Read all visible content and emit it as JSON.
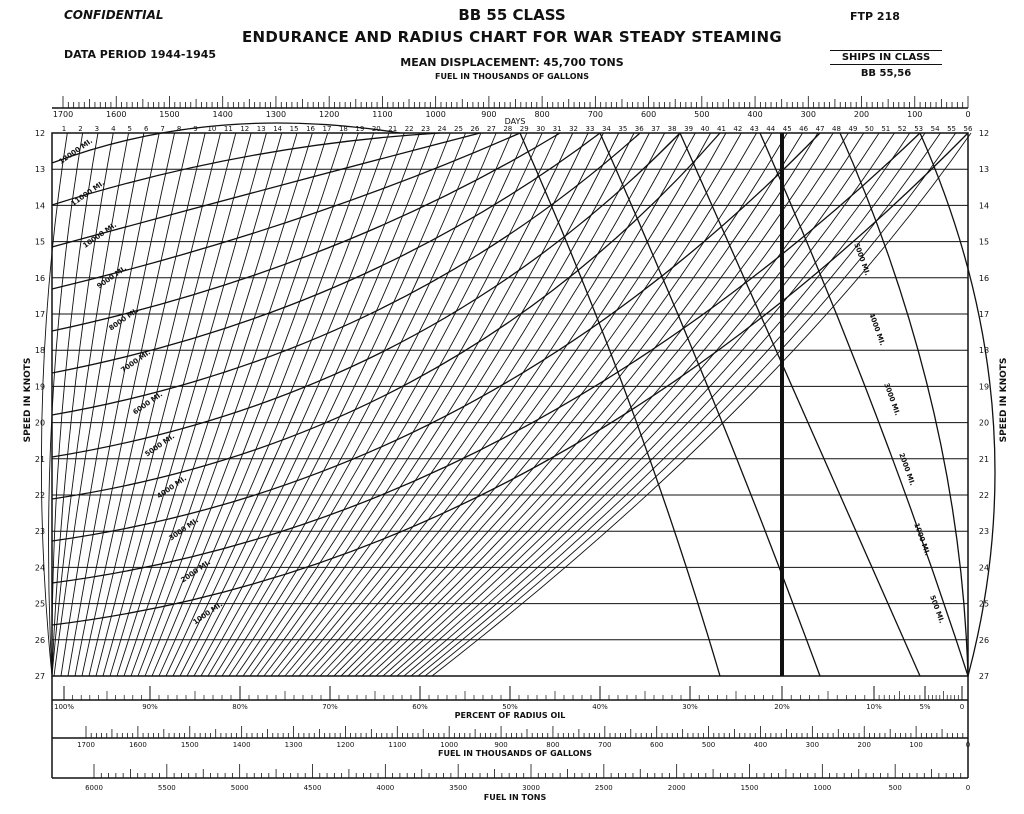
{
  "header": {
    "confidential": "CONFIDENTIAL",
    "title": "BB 55 CLASS",
    "subtitle": "ENDURANCE AND RADIUS CHART FOR WAR STEADY STEAMING",
    "ftp": "FTP 218",
    "data_period": "DATA PERIOD 1944-1945",
    "mean_displacement": "MEAN DISPLACEMENT: 45,700 TONS",
    "fuel_gallons_top": "FUEL IN THOUSANDS OF GALLONS",
    "ships_in_class_label": "SHIPS IN CLASS",
    "ships_in_class": "BB 55,56"
  },
  "chart_data": {
    "type": "line",
    "description_note": "",
    "y_axis": {
      "label": "SPEED IN KNOTS",
      "min": 12,
      "max": 27,
      "ticks": [
        12,
        13,
        14,
        15,
        16,
        17,
        18,
        19,
        20,
        21,
        22,
        23,
        24,
        25,
        26,
        27
      ]
    },
    "top_scale_gallons": {
      "ticks": [
        "1700",
        "1600",
        "1500",
        "1400",
        "1300",
        "1200",
        "1100",
        "1000",
        "900",
        "800",
        "700",
        "600",
        "500",
        "400",
        "300",
        "200",
        "100",
        "0"
      ]
    },
    "days_label": "DAYS",
    "days_ticks": [
      "1",
      "2",
      "3",
      "4",
      "5",
      "6",
      "7",
      "8",
      "9",
      "10",
      "11",
      "12",
      "13",
      "14",
      "15",
      "16",
      "17",
      "18",
      "19",
      "20",
      "21",
      "22",
      "23",
      "24",
      "25",
      "26",
      "27",
      "28",
      "29",
      "30",
      "31",
      "32",
      "33",
      "34",
      "35",
      "36",
      "37",
      "38",
      "39",
      "40",
      "41",
      "42",
      "43",
      "44",
      "45",
      "46",
      "47",
      "48",
      "49",
      "50",
      "51",
      "52",
      "53",
      "54",
      "55",
      "56"
    ],
    "endurance_labels": [
      "12000 MI.",
      "11000 MI.",
      "10000 MI.",
      "9000 MI.",
      "8000 MI.",
      "7000 MI.",
      "6000 MI.",
      "5000 MI.",
      "4000 MI.",
      "3000 MI.",
      "2000 MI.",
      "1000 MI."
    ],
    "radius_labels": [
      "5000 MI.",
      "4000 MI.",
      "3000 MI.",
      "2000 MI.",
      "1000 MI.",
      "500 MI."
    ],
    "percent_radius_oil": {
      "label": "PERCENT OF RADIUS OIL",
      "ticks": [
        "100%",
        "90%",
        "80%",
        "70%",
        "60%",
        "50%",
        "40%",
        "30%",
        "20%",
        "10%",
        "5%",
        "0"
      ]
    },
    "fuel_gallons_bottom": {
      "label": "FUEL IN THOUSANDS OF GALLONS",
      "ticks": [
        "1700",
        "1600",
        "1500",
        "1400",
        "1300",
        "1200",
        "1100",
        "1000",
        "900",
        "800",
        "700",
        "600",
        "500",
        "400",
        "300",
        "200",
        "100",
        "0"
      ]
    },
    "fuel_tons": {
      "label": "FUEL IN TONS",
      "ticks": [
        "6000",
        "5500",
        "5000",
        "4500",
        "4000",
        "3500",
        "3000",
        "2500",
        "2000",
        "1500",
        "1000",
        "500",
        "0"
      ]
    },
    "reference_line_percent": 20
  }
}
